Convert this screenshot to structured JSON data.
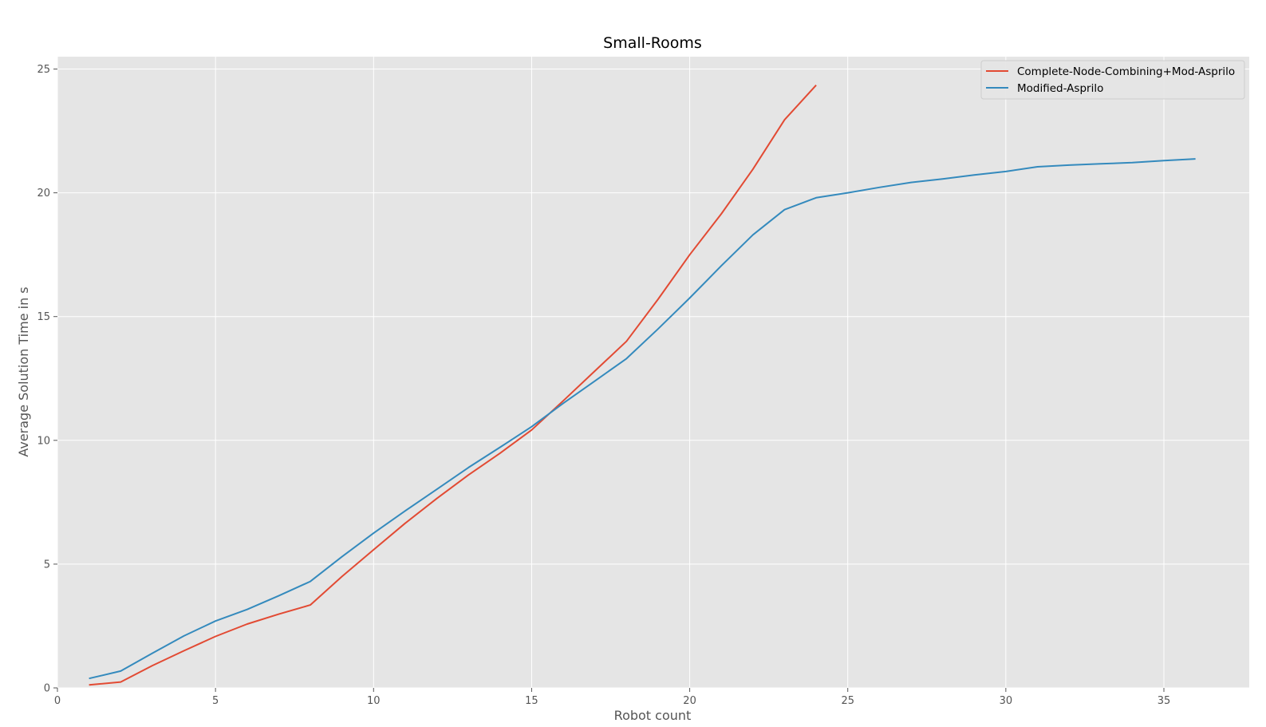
{
  "chart_data": {
    "type": "line",
    "title": "Small-Rooms",
    "xlabel": "Robot count",
    "ylabel": "Average Solution Time in s",
    "xlim": [
      0,
      37.7
    ],
    "ylim": [
      0,
      25.5
    ],
    "xticks": [
      0,
      5,
      10,
      15,
      20,
      25,
      30,
      35
    ],
    "yticks": [
      0,
      5,
      10,
      15,
      20,
      25
    ],
    "grid": true,
    "legend_position": "top-right",
    "series": [
      {
        "name": "Complete-Node-Combining+Mod-Asprilo",
        "color": "#E24A33",
        "x": [
          1,
          2,
          3,
          4,
          5,
          6,
          7,
          8,
          9,
          10,
          11,
          12,
          13,
          14,
          15,
          16,
          17,
          18,
          19,
          20,
          21,
          22,
          23,
          24
        ],
        "y": [
          0.12,
          0.24,
          0.9,
          1.5,
          2.08,
          2.58,
          2.98,
          3.35,
          4.5,
          5.58,
          6.65,
          7.65,
          8.6,
          9.48,
          10.42,
          11.6,
          12.8,
          14.0,
          15.7,
          17.5,
          19.15,
          20.95,
          22.95,
          24.35
        ]
      },
      {
        "name": "Modified-Asprilo",
        "color": "#348ABD",
        "x": [
          1,
          2,
          3,
          4,
          5,
          6,
          7,
          8,
          9,
          10,
          11,
          12,
          13,
          14,
          15,
          16,
          17,
          18,
          19,
          20,
          21,
          22,
          23,
          24,
          25,
          26,
          27,
          28,
          29,
          30,
          31,
          32,
          33,
          34,
          35,
          36
        ],
        "y": [
          0.38,
          0.68,
          1.4,
          2.1,
          2.7,
          3.17,
          3.72,
          4.3,
          5.3,
          6.25,
          7.15,
          8.02,
          8.9,
          9.72,
          10.55,
          11.5,
          12.4,
          13.3,
          14.5,
          15.75,
          17.05,
          18.3,
          19.32,
          19.8,
          20.0,
          20.22,
          20.42,
          20.56,
          20.72,
          20.86,
          21.05,
          21.12,
          21.17,
          21.22,
          21.3,
          21.37
        ]
      }
    ]
  }
}
